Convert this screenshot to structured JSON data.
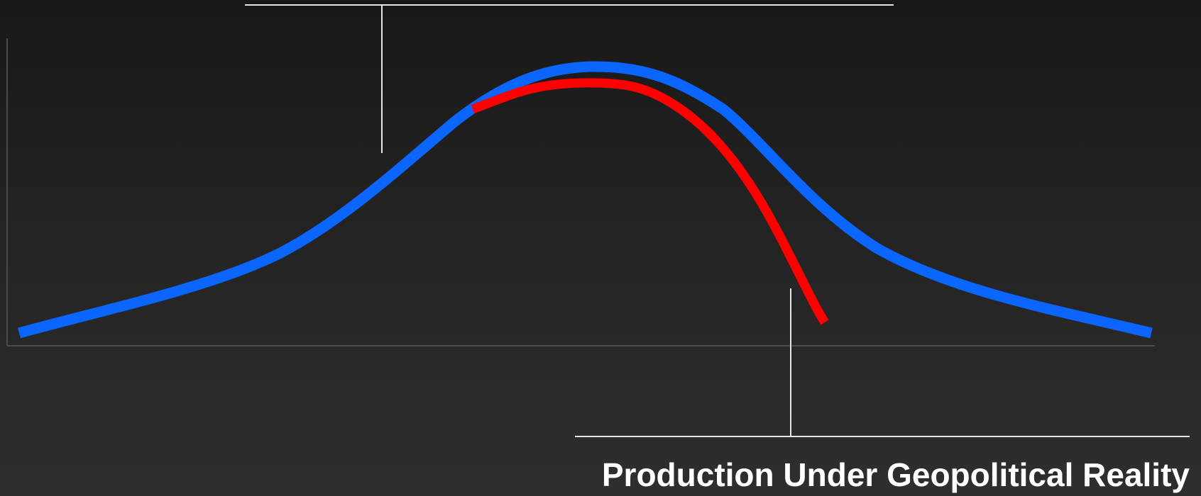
{
  "diagram": {
    "labels": {
      "bottom_callout": "Production Under Geopolitical Reality"
    },
    "curves": [
      {
        "id": "blue-curve",
        "color": "#0a66ff"
      },
      {
        "id": "red-curve",
        "color": "#ff0000"
      }
    ],
    "colors": {
      "axis": "#4a4a4a",
      "callout_line": "#e6e6e6",
      "text": "#ffffff"
    }
  }
}
